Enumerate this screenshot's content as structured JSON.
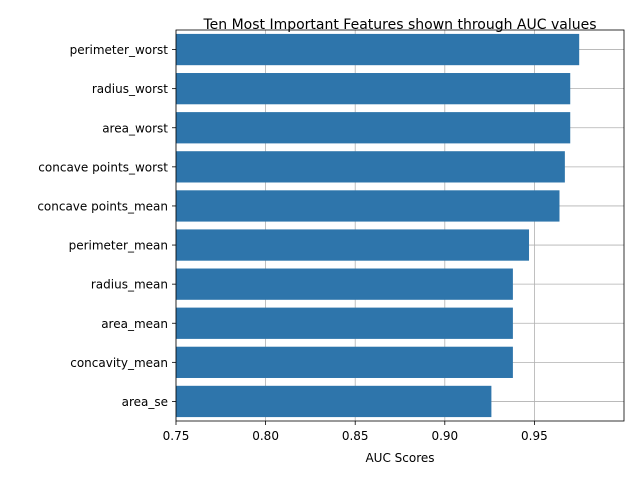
{
  "chart_data": {
    "type": "bar",
    "orientation": "horizontal",
    "title": "Ten Most Important Features shown through AUC values",
    "xlabel": "AUC Scores",
    "ylabel": "",
    "xlim": [
      0.75,
      1.0
    ],
    "xticks": [
      0.75,
      0.8,
      0.85,
      0.9,
      0.95
    ],
    "xtick_labels": [
      "0.75",
      "0.80",
      "0.85",
      "0.90",
      "0.95"
    ],
    "grid": true,
    "bar_color": "#2e75ab",
    "categories": [
      "perimeter_worst",
      "radius_worst",
      "area_worst",
      "concave points_worst",
      "concave points_mean",
      "perimeter_mean",
      "radius_mean",
      "area_mean",
      "concavity_mean",
      "area_se"
    ],
    "values": [
      0.975,
      0.97,
      0.97,
      0.967,
      0.964,
      0.947,
      0.938,
      0.938,
      0.938,
      0.926
    ]
  }
}
